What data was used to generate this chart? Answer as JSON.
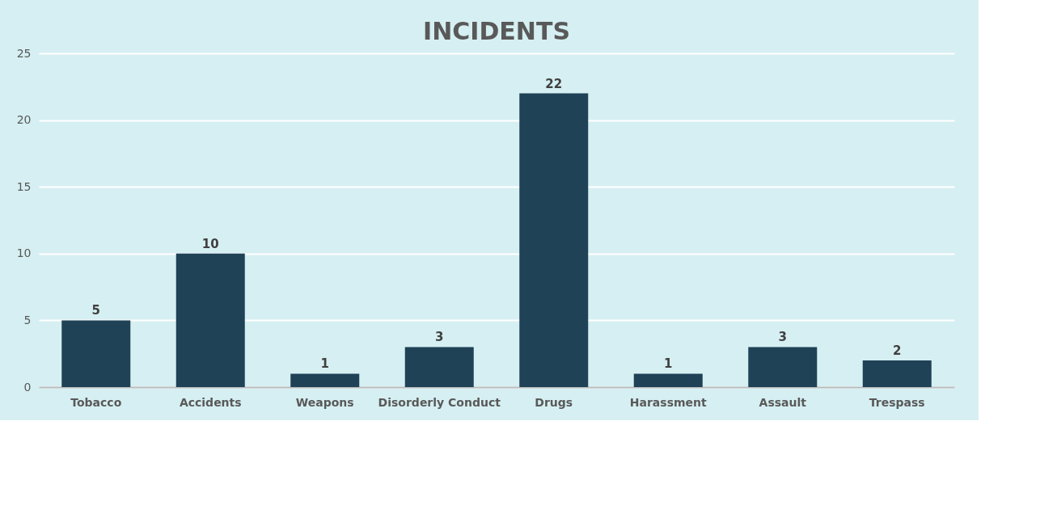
{
  "chart_data": {
    "type": "bar",
    "title": "INCIDENTS",
    "categories": [
      "Tobacco",
      "Accidents",
      "Weapons",
      "Disorderly Conduct",
      "Drugs",
      "Harassment",
      "Assault",
      "Trespass"
    ],
    "values": [
      5,
      10,
      1,
      3,
      22,
      1,
      3,
      2
    ],
    "color": "#1f4257",
    "ylim": [
      0,
      25
    ],
    "yticks": [
      0,
      5,
      10,
      15,
      20,
      25
    ],
    "grid": "y",
    "data_labels": true
  }
}
